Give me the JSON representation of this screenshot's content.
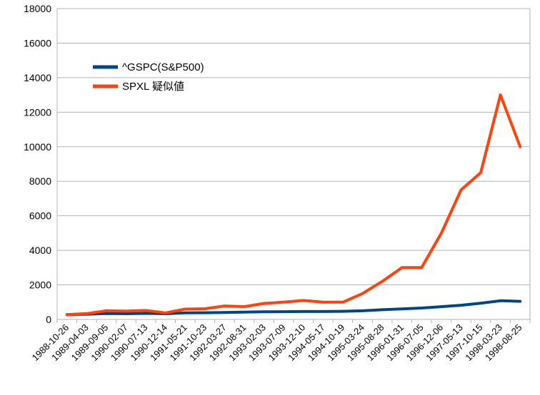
{
  "chart_data": {
    "type": "line",
    "title": "",
    "xlabel": "",
    "ylabel": "",
    "ylim": [
      0,
      18000
    ],
    "yticks": [
      0,
      2000,
      4000,
      6000,
      8000,
      10000,
      12000,
      14000,
      16000,
      18000
    ],
    "grid": true,
    "legend_position": "upper-left",
    "categories": [
      "1988-10-26",
      "1989-04-03",
      "1989-09-05",
      "1990-02-07",
      "1990-07-13",
      "1990-12-14",
      "1991-05-21",
      "1991-10-23",
      "1992-03-27",
      "1992-08-31",
      "1993-02-03",
      "1993-07-09",
      "1993-12-10",
      "1994-05-17",
      "1994-10-19",
      "1995-03-24",
      "1995-08-28",
      "1996-01-31",
      "1996-07-05",
      "1996-12-06",
      "1997-05-13",
      "1997-10-15",
      "1998-03-23",
      "1998-08-25"
    ],
    "series": [
      {
        "name": "^GSPC(S&P500)",
        "color": "#004586",
        "values": [
          280,
          300,
          340,
          330,
          350,
          330,
          380,
          390,
          400,
          420,
          440,
          450,
          460,
          460,
          470,
          500,
          560,
          610,
          660,
          740,
          820,
          940,
          1080,
          1050
        ]
      },
      {
        "name": "SPXL 疑似値",
        "color": "#ff420e",
        "values": [
          280,
          340,
          500,
          480,
          520,
          380,
          600,
          620,
          780,
          740,
          930,
          1000,
          1100,
          1000,
          1000,
          1500,
          2200,
          3000,
          3000,
          5000,
          7500,
          8500,
          13000,
          10000
        ]
      }
    ]
  }
}
